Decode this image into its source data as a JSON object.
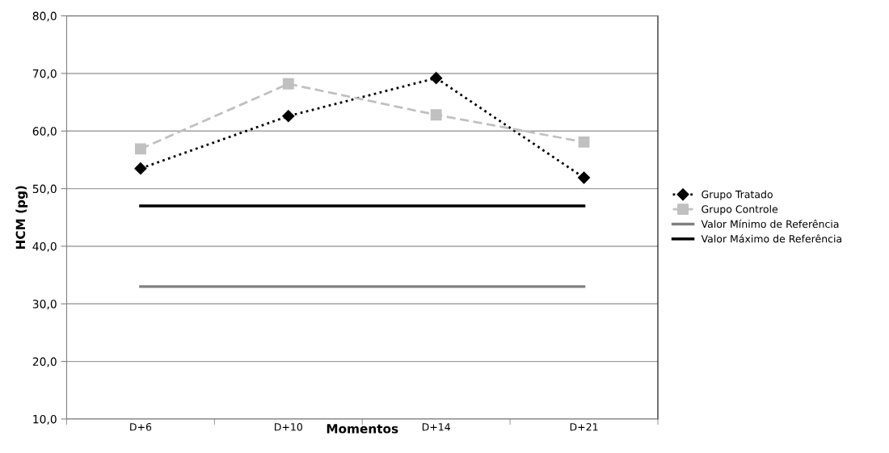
{
  "chart_data": {
    "type": "line",
    "xlabel": "Momentos",
    "ylabel": "HCM (pg)",
    "categories": [
      "D+6",
      "D+10",
      "D+14",
      "D+21"
    ],
    "series": [
      {
        "name": "Grupo Tratado",
        "color": "#000000",
        "values": [
          53.5,
          62.6,
          69.2,
          51.9
        ],
        "marker": "diamond",
        "line_style": "dotted"
      },
      {
        "name": "Grupo Controle",
        "color": "#c0c0c0",
        "values": [
          56.9,
          68.2,
          62.8,
          58.1
        ],
        "marker": "square",
        "line_style": "dashed"
      },
      {
        "name": "Valor Mínimo de Referência",
        "color": "#808080",
        "values": [
          33.0,
          33.0,
          33.0,
          33.0
        ],
        "marker": "none",
        "line_style": "solid"
      },
      {
        "name": "Valor Máximo de Referência",
        "color": "#000000",
        "values": [
          47.0,
          47.0,
          47.0,
          47.0
        ],
        "marker": "none",
        "line_style": "solid"
      }
    ],
    "ylim": [
      10,
      80
    ],
    "yticks": [
      {
        "value": 10,
        "label": "10,0"
      },
      {
        "value": 20,
        "label": "20,0"
      },
      {
        "value": 30,
        "label": "30,0"
      },
      {
        "value": 40,
        "label": "40,0"
      },
      {
        "value": 50,
        "label": "50,0"
      },
      {
        "value": 60,
        "label": "60,0"
      },
      {
        "value": 70,
        "label": "70,0"
      },
      {
        "value": 80,
        "label": "80,0"
      }
    ],
    "grid": "y",
    "legend": "right"
  }
}
